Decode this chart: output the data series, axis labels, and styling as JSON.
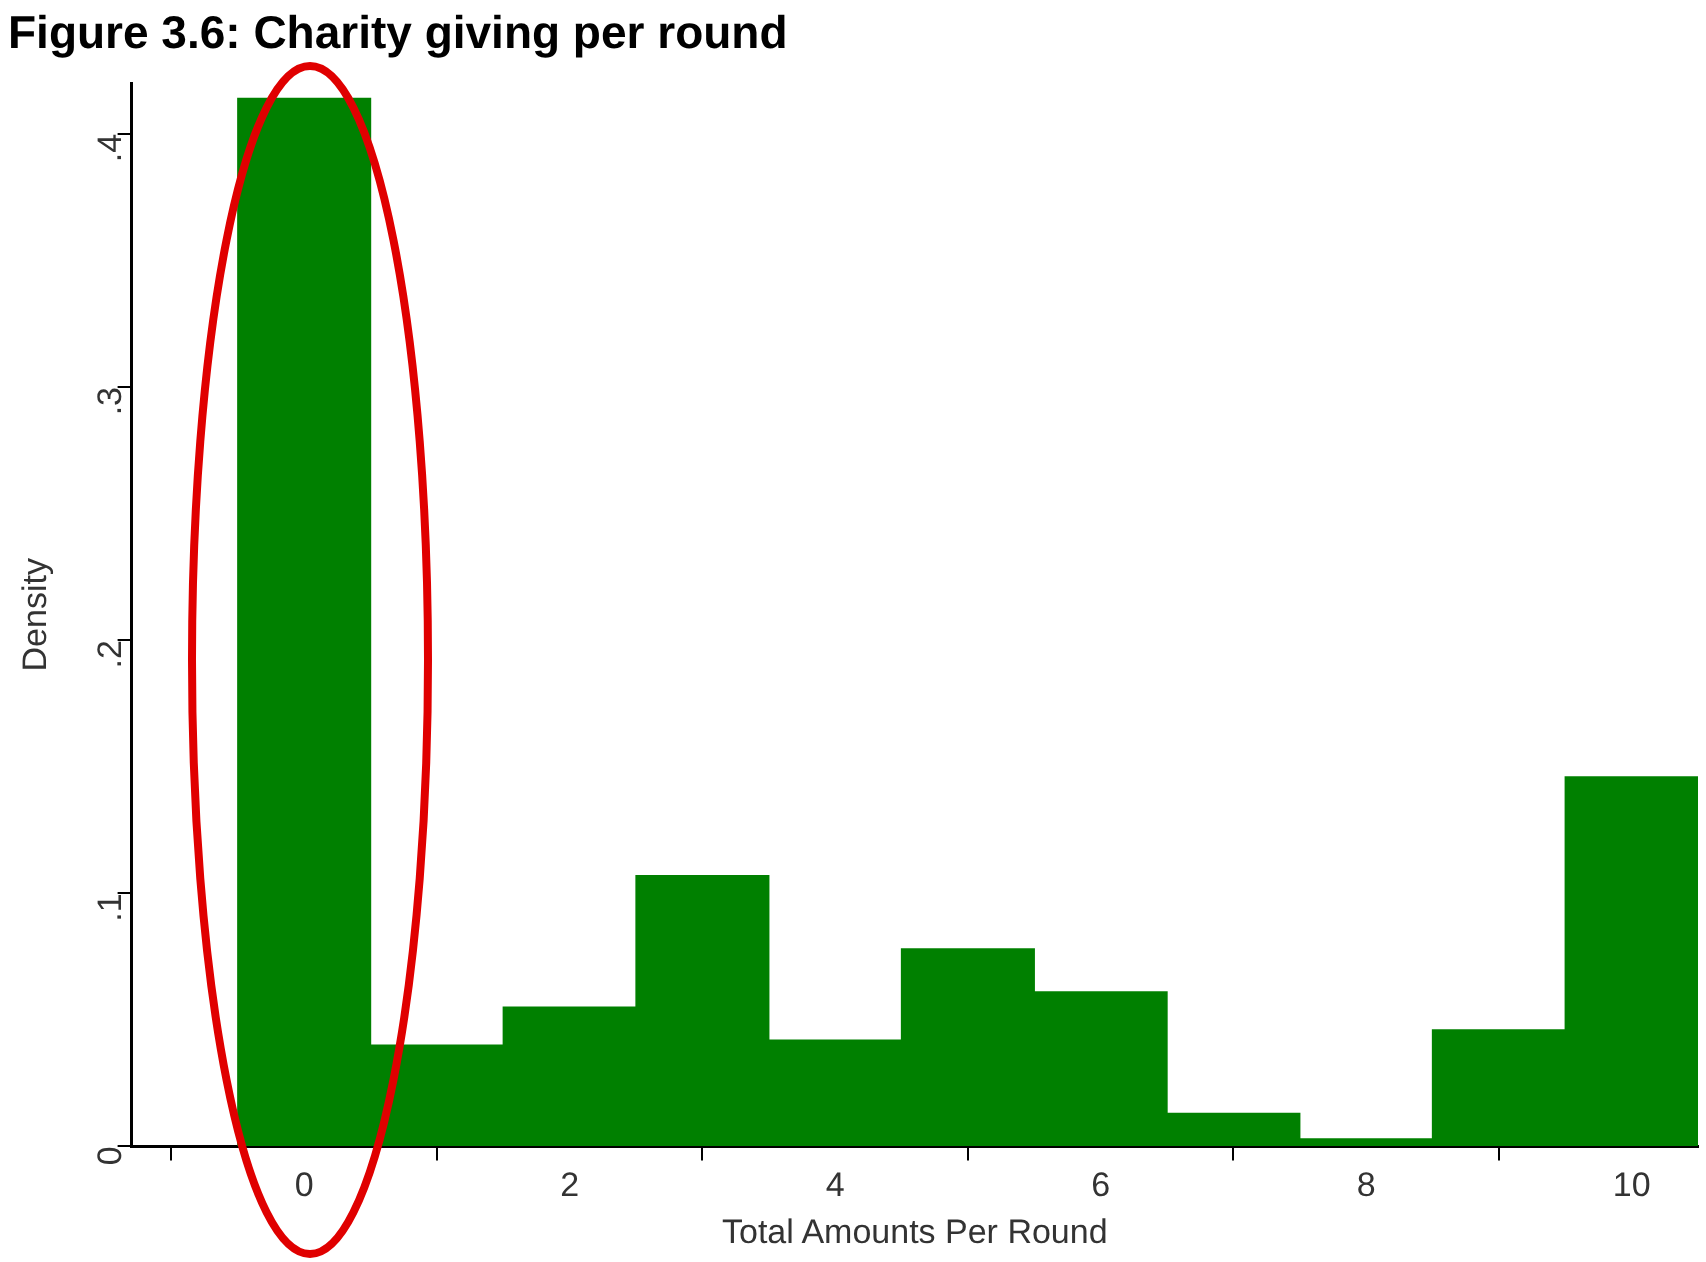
{
  "chart_data": {
    "type": "histogram",
    "title": "Figure 3.6: Charity giving per round",
    "xlabel": "Total Amounts Per Round",
    "ylabel": "Density",
    "bins": [
      -0.5,
      0.5,
      1.5,
      2.5,
      3.5,
      4.5,
      5.5,
      6.5,
      7.5,
      8.5,
      9.5,
      10.5
    ],
    "values": [
      0.414,
      0.04,
      0.055,
      0.107,
      0.042,
      0.078,
      0.061,
      0.013,
      0.003,
      0.046,
      0.146
    ],
    "color": "#008000",
    "xlim": [
      -1.3,
      10.5
    ],
    "xticks": [
      0,
      2,
      4,
      6,
      8,
      10
    ],
    "ylim": [
      0,
      0.42
    ],
    "yticks": [
      0,
      {
        "value": 0.1,
        "label": ".1"
      },
      {
        "value": 0.2,
        "label": ".2"
      },
      {
        "value": 0.3,
        "label": ".3"
      },
      {
        "value": 0.4,
        "label": ".4"
      }
    ],
    "grid": false,
    "legend": false
  }
}
